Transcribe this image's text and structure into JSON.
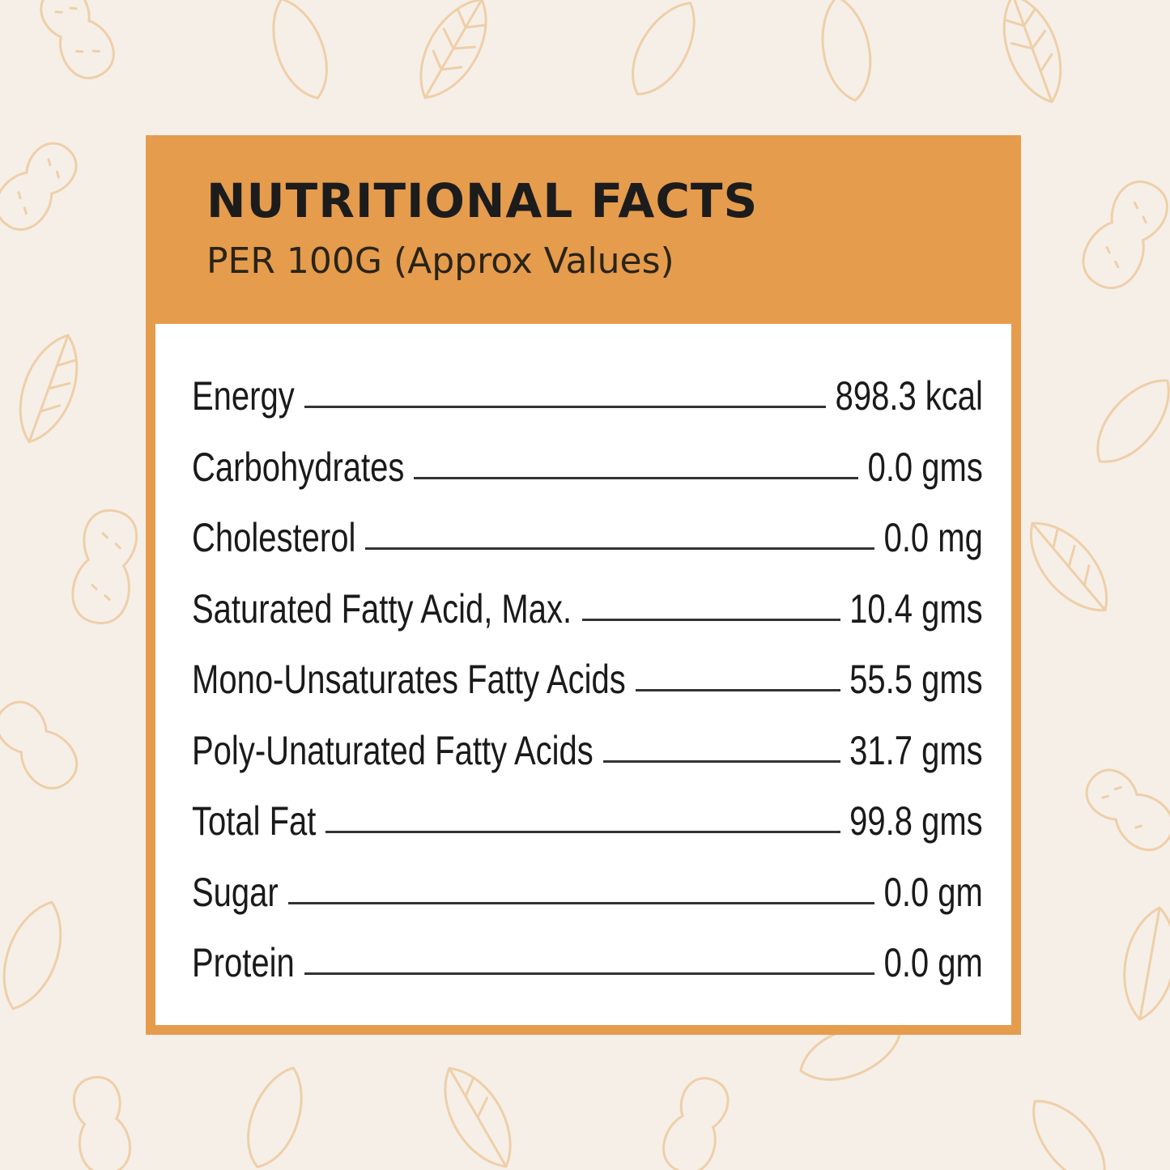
{
  "header": {
    "title": "NUTRITIONAL FACTS",
    "subtitle": "PER 100G (Approx Values)"
  },
  "nutrients": [
    {
      "label": "Energy",
      "value": "898.3 kcal"
    },
    {
      "label": "Carbohydrates",
      "value": "0.0 gms"
    },
    {
      "label": "Cholesterol",
      "value": "0.0 mg"
    },
    {
      "label": "Saturated Fatty Acid, Max.",
      "value": "10.4 gms"
    },
    {
      "label": "Mono-Unsaturates Fatty Acids",
      "value": "55.5 gms"
    },
    {
      "label": "Poly-Unaturated Fatty Acids",
      "value": "31.7 gms"
    },
    {
      "label": "Total Fat",
      "value": "99.8 gms"
    },
    {
      "label": "Sugar",
      "value": "0.0 gm"
    },
    {
      "label": "Protein",
      "value": "0.0 gm"
    }
  ],
  "colors": {
    "background": "#f5efe8",
    "accent": "#e69c4d",
    "pattern": "#efcfa8"
  },
  "icons": [
    "peanut-icon",
    "leaf-icon",
    "almond-icon"
  ]
}
